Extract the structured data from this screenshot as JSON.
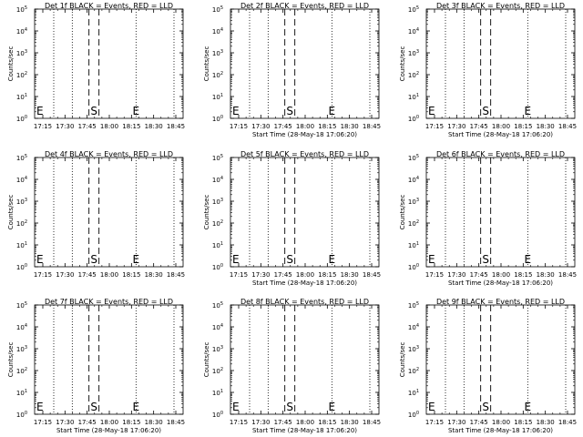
{
  "chart_data": {
    "type": "line",
    "grid": false,
    "y_scale": "log",
    "ylim": [
      1,
      100000
    ],
    "x_tick_labels": [
      "17:15",
      "17:30",
      "17:45",
      "18:00",
      "18:15",
      "18:30",
      "18:45"
    ],
    "y_tick_labels": [
      {
        "base": "10",
        "exp": "0"
      },
      {
        "base": "10",
        "exp": "1"
      },
      {
        "base": "10",
        "exp": "2"
      },
      {
        "base": "10",
        "exp": "3"
      },
      {
        "base": "10",
        "exp": "4"
      },
      {
        "base": "10",
        "exp": "5"
      }
    ],
    "ylabel": "Counts/sec",
    "xlabel": "Start Time (28-May-18 17:06:20)",
    "marker_start_label": "S",
    "marker_end_label": "E",
    "panels": [
      {
        "title": "Det 1f BLACK = Events, RED = LLD",
        "show_xlabel": false
      },
      {
        "title": "Det 2f BLACK = Events, RED = LLD",
        "show_xlabel": true
      },
      {
        "title": "Det 3f BLACK = Events, RED = LLD",
        "show_xlabel": true
      },
      {
        "title": "Det 4f BLACK = Events, RED = LLD",
        "show_xlabel": false
      },
      {
        "title": "Det 5f BLACK = Events, RED = LLD",
        "show_xlabel": true
      },
      {
        "title": "Det 6f BLACK = Events, RED = LLD",
        "show_xlabel": true
      },
      {
        "title": "Det 7f BLACK = Events, RED = LLD",
        "show_xlabel": true
      },
      {
        "title": "Det 8f BLACK = Events, RED = LLD",
        "show_xlabel": true
      },
      {
        "title": "Det 9f BLACK = Events, RED = LLD",
        "show_xlabel": true
      }
    ]
  }
}
